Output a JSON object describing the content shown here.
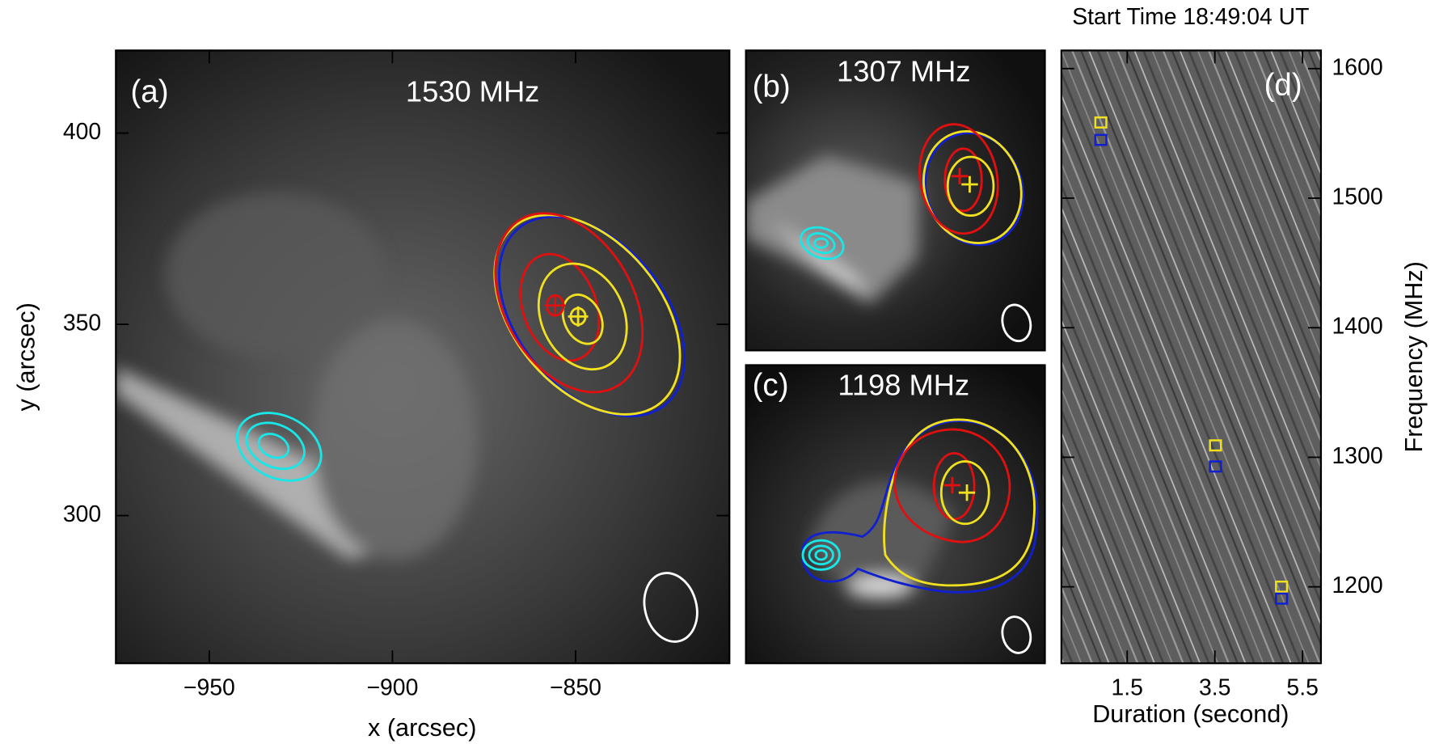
{
  "chart_data": [
    {
      "type": "image",
      "label": "(a)",
      "title": "1530 MHz",
      "xlabel": "x (arcsec)",
      "ylabel": "y (arcsec)",
      "xlim": [
        -975.5,
        -808
      ],
      "ylim": [
        261.4,
        421.6
      ],
      "xticks": [
        {
          "value": -950,
          "label": "−950"
        },
        {
          "value": -900,
          "label": "−900"
        },
        {
          "value": -850,
          "label": "−850"
        }
      ],
      "yticks": [
        300,
        350,
        400
      ]
    },
    {
      "type": "image",
      "label": "(b)",
      "title": "1307 MHz"
    },
    {
      "type": "image",
      "label": "(c)",
      "title": "1198 MHz"
    },
    {
      "type": "spectrum",
      "label": "(d)",
      "title": "Start Time 18:49:04 UT",
      "xlabel": "Duration (second)",
      "ylabel": "Frequency (MHz)",
      "xlim": [
        0,
        5.92
      ],
      "ylim": [
        1141,
        1614
      ],
      "xticks": [
        1.5,
        3.5,
        5.5
      ],
      "yticks": [
        1200,
        1300,
        1400,
        1500,
        1600
      ]
    }
  ]
}
